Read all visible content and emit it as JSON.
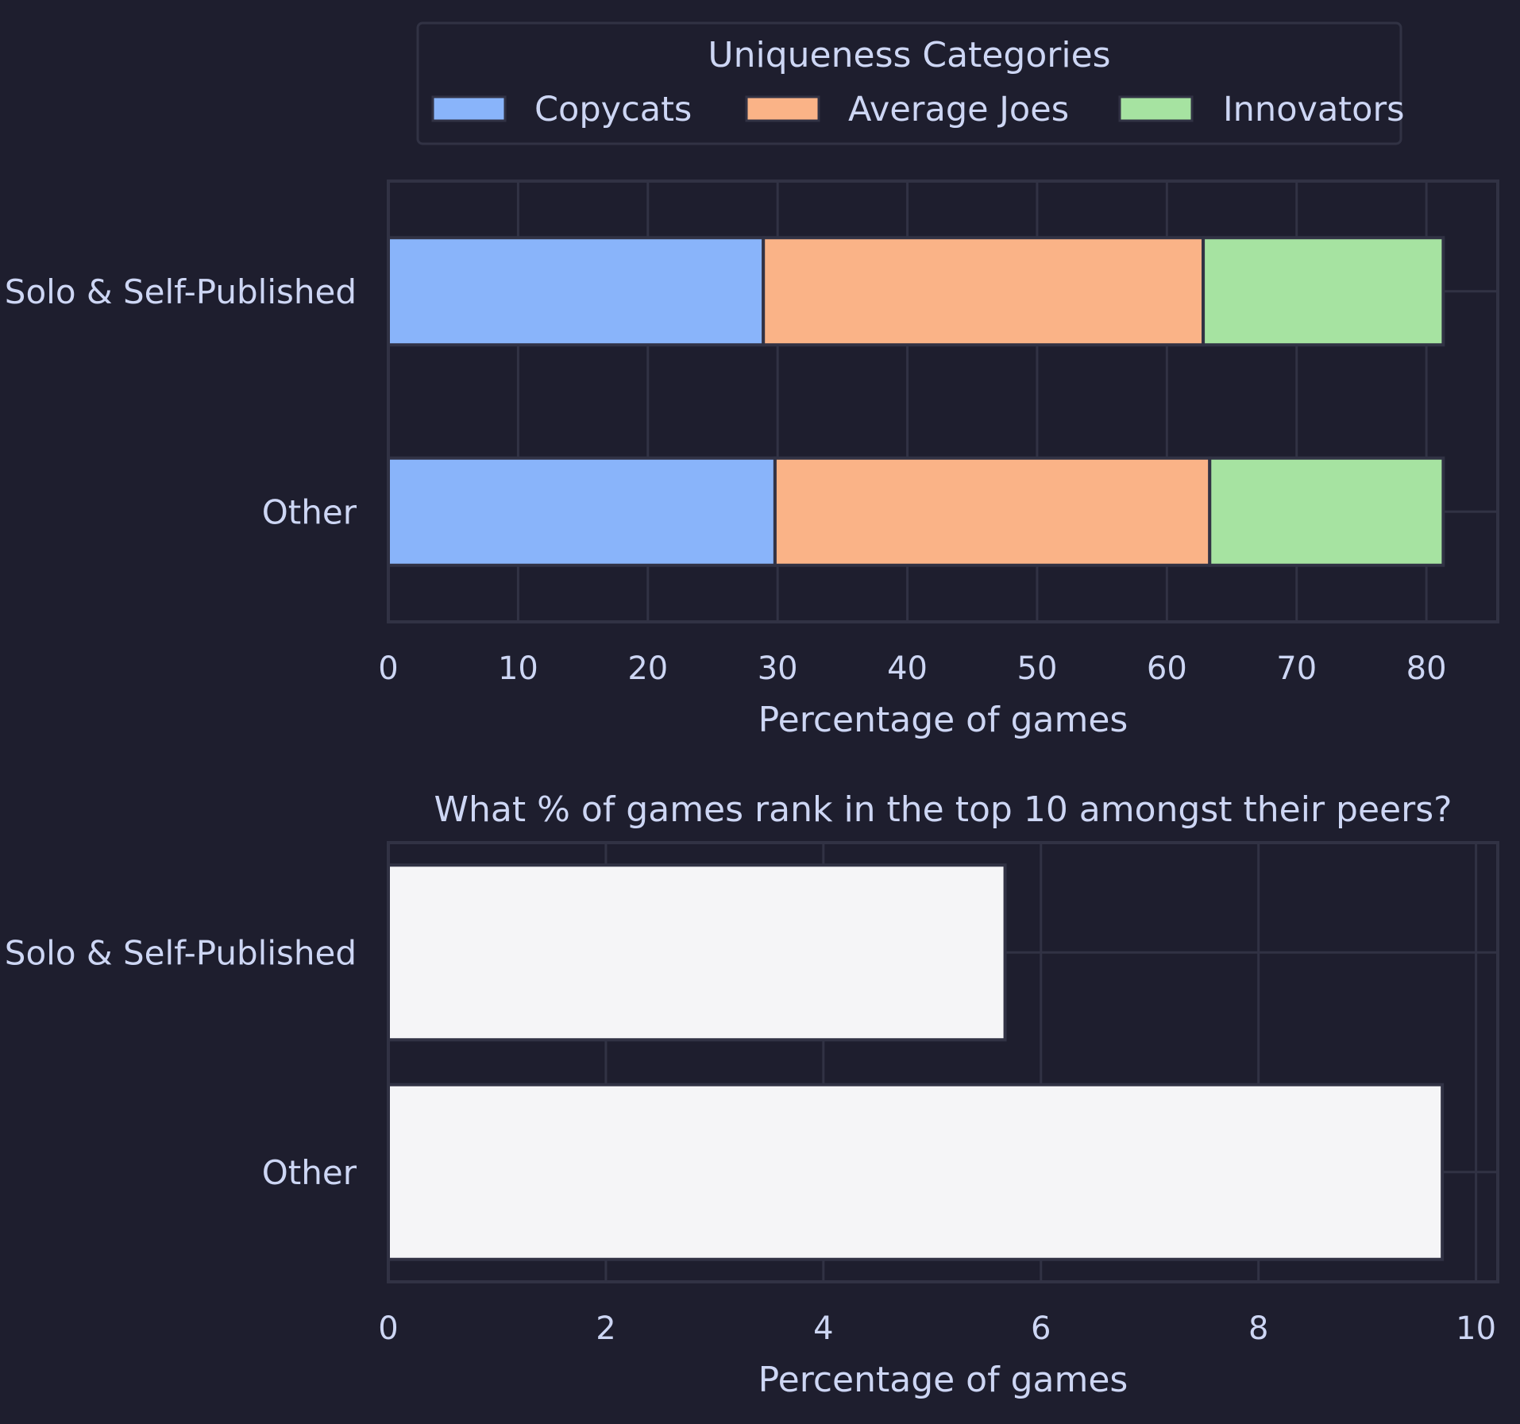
{
  "chart_data": [
    {
      "type": "bar",
      "orientation": "horizontal",
      "stacked": true,
      "title": "",
      "xlabel": "Percentage of games",
      "ylabel": "",
      "xlim": [
        0,
        85.5
      ],
      "xticks": [
        0,
        10,
        20,
        30,
        40,
        50,
        60,
        70,
        80
      ],
      "grid": true,
      "categories": [
        "Solo & Self-Published",
        "Other"
      ],
      "legend": {
        "title": "Uniqueness Categories",
        "placement": "top-center"
      },
      "series": [
        {
          "name": "Copycats",
          "color": "#89b4fa",
          "values": [
            28.9,
            29.8
          ]
        },
        {
          "name": "Average Joes",
          "color": "#fab387",
          "values": [
            33.9,
            33.5
          ]
        },
        {
          "name": "Innovators",
          "color": "#a6e3a1",
          "values": [
            18.5,
            18.0
          ]
        }
      ]
    },
    {
      "type": "bar",
      "orientation": "horizontal",
      "stacked": false,
      "title": "What % of games rank in the top 10 amongst their peers?",
      "xlabel": "Percentage of games",
      "ylabel": "",
      "xlim": [
        0,
        10.2
      ],
      "xticks": [
        0,
        2,
        4,
        6,
        8,
        10
      ],
      "grid": true,
      "categories": [
        "Solo & Self-Published",
        "Other"
      ],
      "series": [
        {
          "color": "#f5f5f7",
          "values": [
            5.67,
            9.69
          ]
        }
      ]
    }
  ]
}
